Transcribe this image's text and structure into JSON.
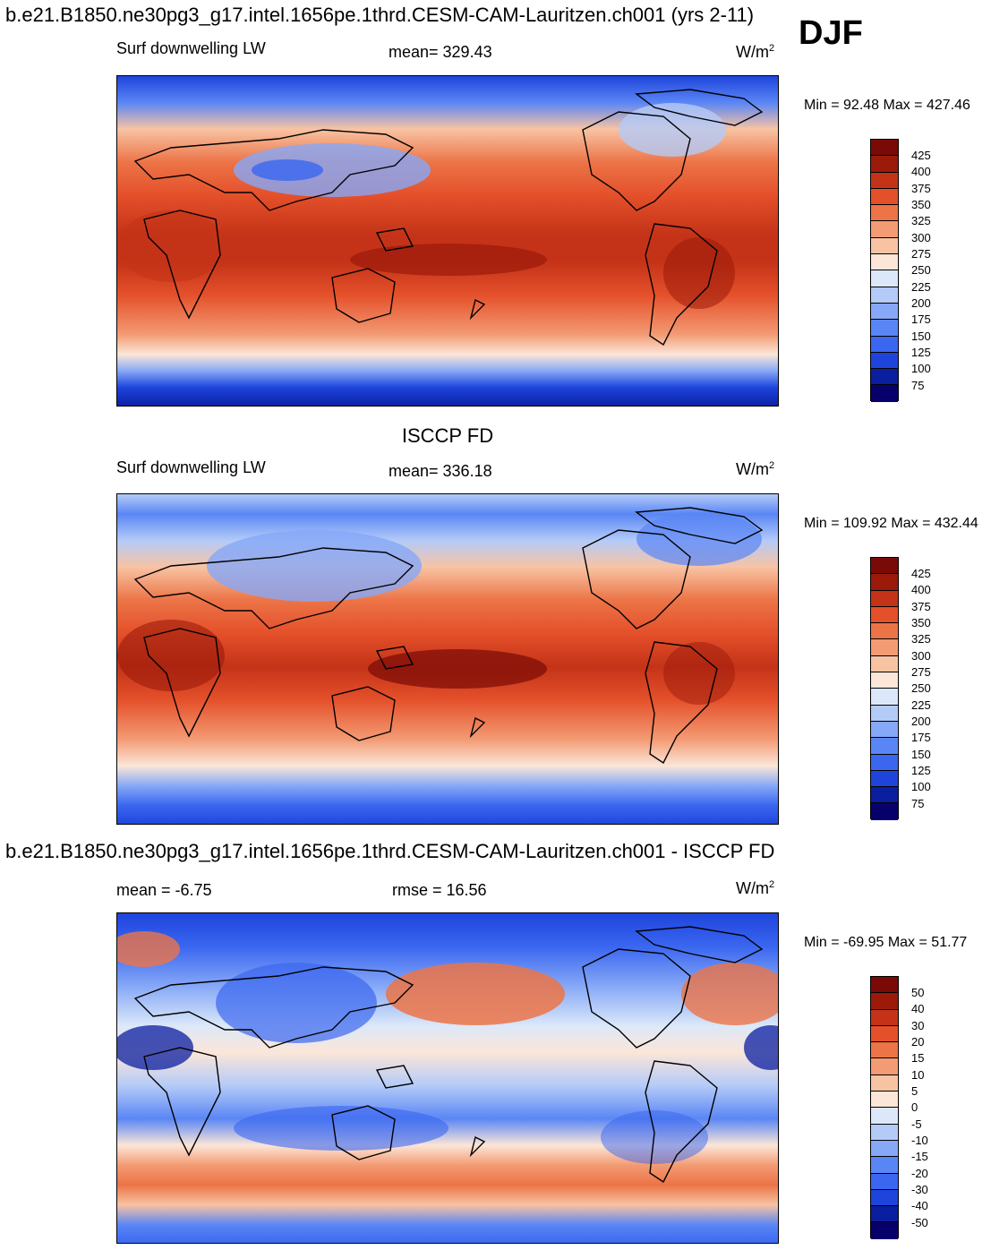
{
  "header": {
    "title": "b.e21.B1850.ne30pg3_g17.intel.1656pe.1thrd.CESM-CAM-Lauritzen.ch001 (yrs 2-11)",
    "season": "DJF"
  },
  "colors": {
    "abs_scale": [
      "#08006a",
      "#0a1ea0",
      "#1e44dc",
      "#3a66f0",
      "#5a86f5",
      "#86a8f7",
      "#b4cbf8",
      "#dce8f9",
      "#fbe6d8",
      "#f8c3a3",
      "#f39b74",
      "#ec7447",
      "#e4502a",
      "#c43318",
      "#9b1a0a",
      "#7a0a05"
    ],
    "diff_scale": [
      "#08006a",
      "#0a1ea0",
      "#1e44dc",
      "#3a66f0",
      "#5a86f5",
      "#86a8f7",
      "#b4cbf8",
      "#dce8f9",
      "#fbe6d8",
      "#f8c3a3",
      "#f39b74",
      "#ec7447",
      "#e4502a",
      "#c43318",
      "#9b1a0a",
      "#7a0a05"
    ]
  },
  "chart_data": [
    {
      "type": "heatmap",
      "panel": "model",
      "title": "",
      "variable": "Surf downwelling LW",
      "mean_label": "mean= 329.43",
      "units_text": "W/m",
      "units_sup": "2",
      "minmax": "Min =  92.48 Max = 427.46",
      "min": 92.48,
      "max": 427.46,
      "mean": 329.43,
      "colorbar_levels": [
        "425",
        "400",
        "375",
        "350",
        "325",
        "300",
        "275",
        "250",
        "225",
        "200",
        "175",
        "150",
        "125",
        "100",
        "75"
      ]
    },
    {
      "type": "heatmap",
      "panel": "obs",
      "title": "ISCCP FD",
      "variable": "Surf downwelling LW",
      "mean_label": "mean= 336.18",
      "units_text": "W/m",
      "units_sup": "2",
      "minmax": "Min = 109.92 Max = 432.44",
      "min": 109.92,
      "max": 432.44,
      "mean": 336.18,
      "colorbar_levels": [
        "425",
        "400",
        "375",
        "350",
        "325",
        "300",
        "275",
        "250",
        "225",
        "200",
        "175",
        "150",
        "125",
        "100",
        "75"
      ]
    },
    {
      "type": "heatmap",
      "panel": "difference",
      "title": "b.e21.B1850.ne30pg3_g17.intel.1656pe.1thrd.CESM-CAM-Lauritzen.ch001 - ISCCP FD",
      "mean_label": "mean =  -6.75",
      "rmse_label": "rmse =  16.56",
      "units_text": "W/m",
      "units_sup": "2",
      "minmax": "Min = -69.95 Max =  51.77",
      "min": -69.95,
      "max": 51.77,
      "mean": -6.75,
      "rmse": 16.56,
      "colorbar_levels": [
        "50",
        "40",
        "30",
        "20",
        "15",
        "10",
        "5",
        "0",
        "-5",
        "-10",
        "-15",
        "-20",
        "-30",
        "-40",
        "-50"
      ]
    }
  ]
}
